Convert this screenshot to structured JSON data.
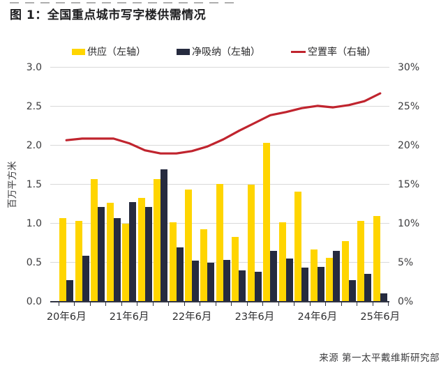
{
  "figure": {
    "title": "图 1：全国重点城市写字楼供需情况",
    "source": "来源 第一太平戴维斯研究部"
  },
  "chart_data": {
    "type": "combo bar+line",
    "n_points": 21,
    "x_frequency": "quarterly",
    "x_tick_labels": [
      "20年6月",
      "21年6月",
      "22年6月",
      "23年6月",
      "24年6月",
      "25年6月"
    ],
    "x_tick_label_positions": [
      0,
      4,
      8,
      12,
      16,
      20
    ],
    "left_axis": {
      "label": "百万平方米",
      "min": 0,
      "max": 3.0,
      "step": 0.5,
      "tick_labels": [
        "3.0",
        "2.5",
        "2.0",
        "1.5",
        "1.0",
        "0.5",
        "0.0"
      ]
    },
    "right_axis": {
      "min": 0,
      "max": 30,
      "step": 5,
      "tick_labels": [
        "30%",
        "25%",
        "20%",
        "15%",
        "10%",
        "5%",
        "0%"
      ]
    },
    "grid": "horizontal",
    "legend_position": "top-center",
    "series": [
      {
        "name": "供应（左轴）",
        "type": "bar",
        "axis": "left",
        "color": "#FFD500",
        "values": [
          1.07,
          1.04,
          1.57,
          1.27,
          1.0,
          1.33,
          1.57,
          1.02,
          1.44,
          0.93,
          1.51,
          0.83,
          1.5,
          2.04,
          1.02,
          1.41,
          0.67,
          0.56,
          0.78,
          1.04,
          1.1
        ]
      },
      {
        "name": "净吸纳（左轴）",
        "type": "bar",
        "axis": "left",
        "color": "#262B3F",
        "values": [
          0.28,
          0.59,
          1.21,
          1.07,
          1.28,
          1.21,
          1.7,
          0.7,
          0.53,
          0.5,
          0.54,
          0.4,
          0.38,
          0.65,
          0.55,
          0.44,
          0.45,
          0.65,
          0.28,
          0.36,
          0.11
        ]
      },
      {
        "name": "空置率（右轴）",
        "type": "line",
        "axis": "right",
        "color": "#C0242E",
        "values_percent": [
          20.7,
          20.9,
          20.9,
          20.9,
          20.3,
          19.4,
          19.0,
          19.0,
          19.3,
          19.9,
          20.8,
          21.9,
          22.9,
          23.9,
          24.3,
          24.8,
          25.1,
          24.9,
          25.2,
          25.7,
          26.7
        ]
      }
    ]
  }
}
